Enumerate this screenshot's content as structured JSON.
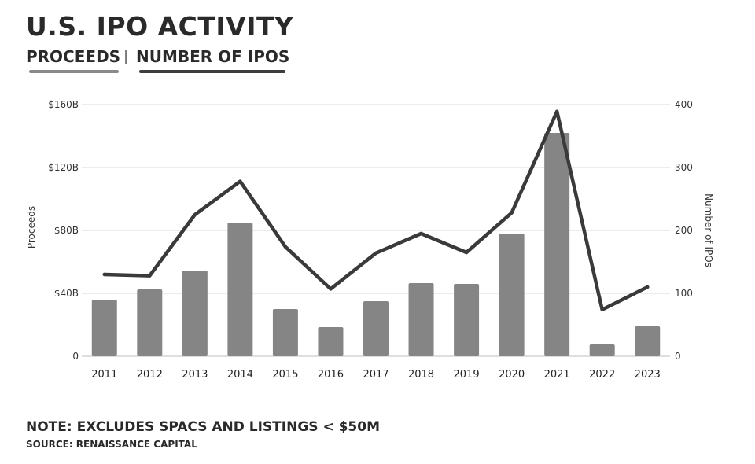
{
  "title": "U.S. IPO ACTIVITY",
  "legend": {
    "bar_label": "PROCEEDS",
    "separator": "|",
    "line_label": "NUMBER OF IPOS"
  },
  "note": "NOTE: EXCLUDES SPACS AND LISTINGS < $50M",
  "source": "SOURCE: RENAISSANCE CAPITAL",
  "colors": {
    "bar": "#858585",
    "line": "#3a3a3a",
    "grid": "#d9d9d9"
  },
  "chart_data": {
    "type": "bar",
    "title": "U.S. IPO ACTIVITY",
    "categories": [
      "2011",
      "2012",
      "2013",
      "2014",
      "2015",
      "2016",
      "2017",
      "2018",
      "2019",
      "2020",
      "2021",
      "2022",
      "2023"
    ],
    "series": [
      {
        "name": "PROCEEDS",
        "type": "bar",
        "axis": "left",
        "values": [
          36,
          42.5,
          54.5,
          85,
          30,
          18.5,
          35,
          46.5,
          46,
          78,
          142,
          7.5,
          19
        ]
      },
      {
        "name": "NUMBER OF IPOS",
        "type": "line",
        "axis": "right",
        "values": [
          130,
          128,
          225,
          278,
          174,
          107,
          164,
          195,
          165,
          228,
          389,
          74,
          110
        ]
      }
    ],
    "ylabel": "Proceeds",
    "ylabel_right": "Number of IPOs",
    "ylim": [
      0,
      160
    ],
    "ylim_right": [
      0,
      400
    ],
    "yticks": [
      0,
      40,
      80,
      120,
      160
    ],
    "ytick_labels": [
      "0",
      "$40B",
      "$80B",
      "$120B",
      "$160B"
    ],
    "yticks_right": [
      0,
      100,
      200,
      300,
      400
    ],
    "ytick_labels_right": [
      "0",
      "100",
      "200",
      "300",
      "400"
    ],
    "grid": true
  }
}
